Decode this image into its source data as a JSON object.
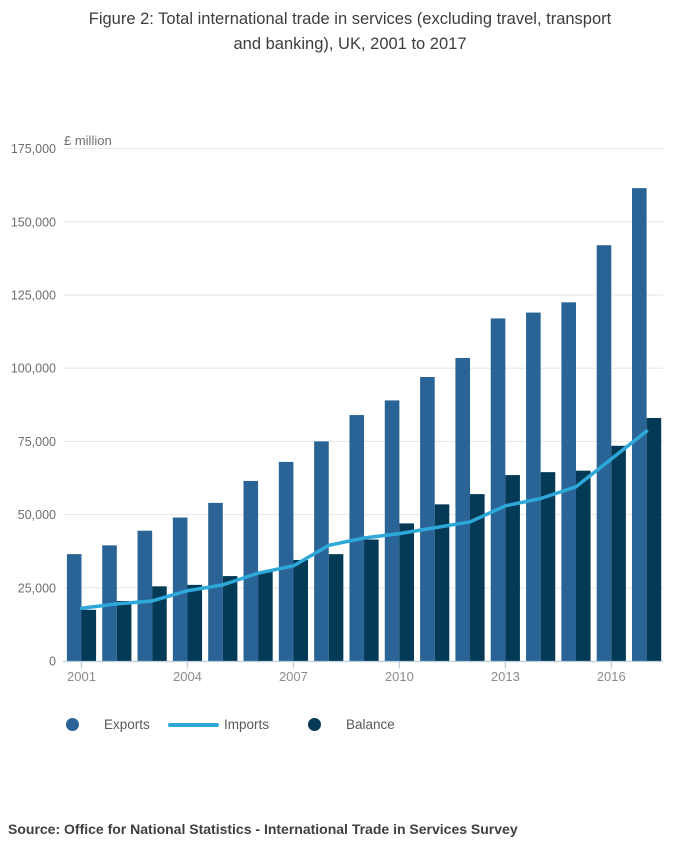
{
  "title": {
    "line1": "Figure 2: Total international trade in services (excluding travel, transport",
    "line2": "and banking), UK, 2001 to 2017"
  },
  "chart_data": {
    "type": "bar",
    "subtype": "grouped bars with overlaid line",
    "unit_label": "£ million",
    "years": [
      2001,
      2002,
      2003,
      2004,
      2005,
      2006,
      2007,
      2008,
      2009,
      2010,
      2011,
      2012,
      2013,
      2014,
      2015,
      2016,
      2017
    ],
    "series": [
      {
        "name": "Exports",
        "type": "bar",
        "color": "#2a6496",
        "values": [
          36500,
          39500,
          44500,
          49000,
          54000,
          61500,
          68000,
          75000,
          84000,
          89000,
          97000,
          103500,
          117000,
          119000,
          122500,
          142000,
          161500
        ]
      },
      {
        "name": "Imports",
        "type": "line",
        "color": "#2da8d8",
        "values": [
          18000,
          19500,
          20500,
          24000,
          26000,
          30000,
          32500,
          39500,
          42000,
          43500,
          45500,
          47500,
          53000,
          55500,
          59500,
          69000,
          78500
        ]
      },
      {
        "name": "Balance",
        "type": "bar",
        "color": "#053a57",
        "values": [
          17500,
          20500,
          25500,
          26000,
          29000,
          30500,
          34500,
          36500,
          41500,
          47000,
          53500,
          57000,
          63500,
          64500,
          65000,
          73500,
          83000
        ]
      }
    ],
    "y_axis": {
      "min": 0,
      "max": 175000,
      "tick_step": 25000,
      "tick_labels": [
        "0",
        "25,000",
        "50,000",
        "75,000",
        "100,000",
        "125,000",
        "150,000",
        "175,000"
      ],
      "grid": true
    },
    "x_axis": {
      "tick_labels": [
        "2001",
        "2004",
        "2007",
        "2010",
        "2013",
        "2016"
      ]
    },
    "legend_position": "bottom"
  },
  "legend": [
    {
      "label": "Exports"
    },
    {
      "label": "Imports"
    },
    {
      "label": "Balance"
    }
  ],
  "source": "Source: Office for National Statistics - International Trade in Services Survey",
  "colors": {
    "exports_bar": "#2a6496",
    "imports_line": "#2da8d8",
    "balance_bar": "#053a57",
    "gridline": "#e6e6e6",
    "axis_line": "#bccfdd",
    "y_label_text": "#6e6e6e",
    "x_label_text": "#8c8c8c",
    "title_text": "#3d3d3d",
    "legend_text": "#595959",
    "source_text": "#3f3f3f"
  }
}
